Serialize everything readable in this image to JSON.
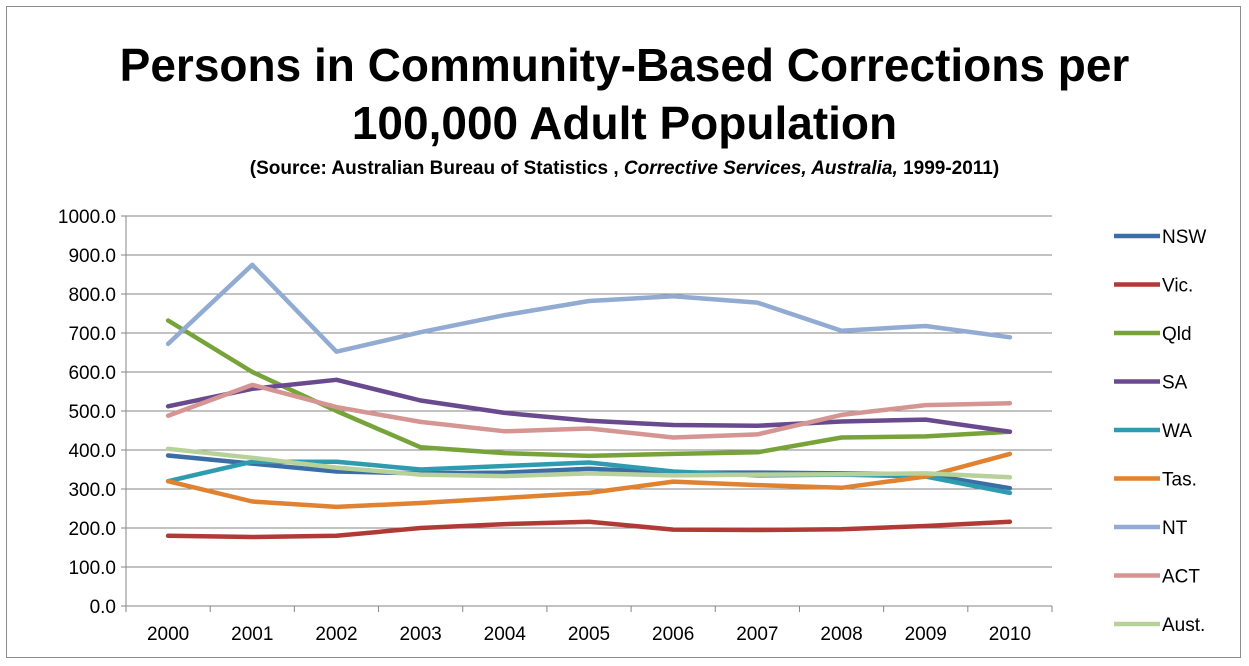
{
  "title": {
    "line1": "Persons in Community-Based Corrections per",
    "line2": "100,000 Adult Population",
    "subtitle_part1": "(Source: Australian Bureau of Statistics , ",
    "subtitle_italic": "Corrective Services, Australia,",
    "subtitle_part2": " 1999-2011)"
  },
  "chart_data": {
    "type": "line",
    "title": "Persons in Community-Based Corrections per 100,000 Adult Population",
    "subtitle": "(Source: Australian Bureau of Statistics , Corrective Services, Australia, 1999-2011)",
    "xlabel": "",
    "ylabel": "",
    "categories": [
      "2000",
      "2001",
      "2002",
      "2003",
      "2004",
      "2005",
      "2006",
      "2007",
      "2008",
      "2009",
      "2010"
    ],
    "ylim": [
      0,
      1000
    ],
    "yticks": [
      "0.0",
      "100.0",
      "200.0",
      "300.0",
      "400.0",
      "500.0",
      "600.0",
      "700.0",
      "800.0",
      "900.0",
      "1000.0"
    ],
    "grid": "horizontal",
    "legend_position": "right",
    "series": [
      {
        "name": "NSW",
        "color": "#3a6ea5",
        "values": [
          386,
          365,
          345,
          340,
          342,
          352,
          342,
          342,
          340,
          338,
          302
        ]
      },
      {
        "name": "Vic.",
        "color": "#b13a36",
        "values": [
          180,
          177,
          180,
          200,
          210,
          216,
          196,
          195,
          197,
          205,
          216
        ]
      },
      {
        "name": "Qld",
        "color": "#77a33a",
        "values": [
          732,
          600,
          500,
          407,
          392,
          385,
          390,
          394,
          432,
          435,
          447
        ]
      },
      {
        "name": "SA",
        "color": "#6a4a8e",
        "values": [
          512,
          557,
          580,
          527,
          495,
          475,
          464,
          462,
          473,
          478,
          447
        ]
      },
      {
        "name": "WA",
        "color": "#2f9bb0",
        "values": [
          320,
          370,
          370,
          350,
          359,
          368,
          345,
          335,
          337,
          332,
          290
        ]
      },
      {
        "name": "Tas.",
        "color": "#e0822f",
        "values": [
          320,
          268,
          254,
          264,
          277,
          290,
          319,
          310,
          303,
          332,
          390
        ]
      },
      {
        "name": "NT",
        "color": "#92abd3",
        "values": [
          672,
          875,
          652,
          702,
          746,
          782,
          794,
          778,
          706,
          718,
          689
        ]
      },
      {
        "name": "ACT",
        "color": "#d59592",
        "values": [
          488,
          567,
          510,
          472,
          448,
          455,
          432,
          440,
          490,
          515,
          520
        ]
      },
      {
        "name": "Aust.",
        "color": "#b8d09a",
        "values": [
          403,
          380,
          355,
          337,
          333,
          340,
          335,
          337,
          338,
          340,
          330
        ]
      }
    ]
  }
}
